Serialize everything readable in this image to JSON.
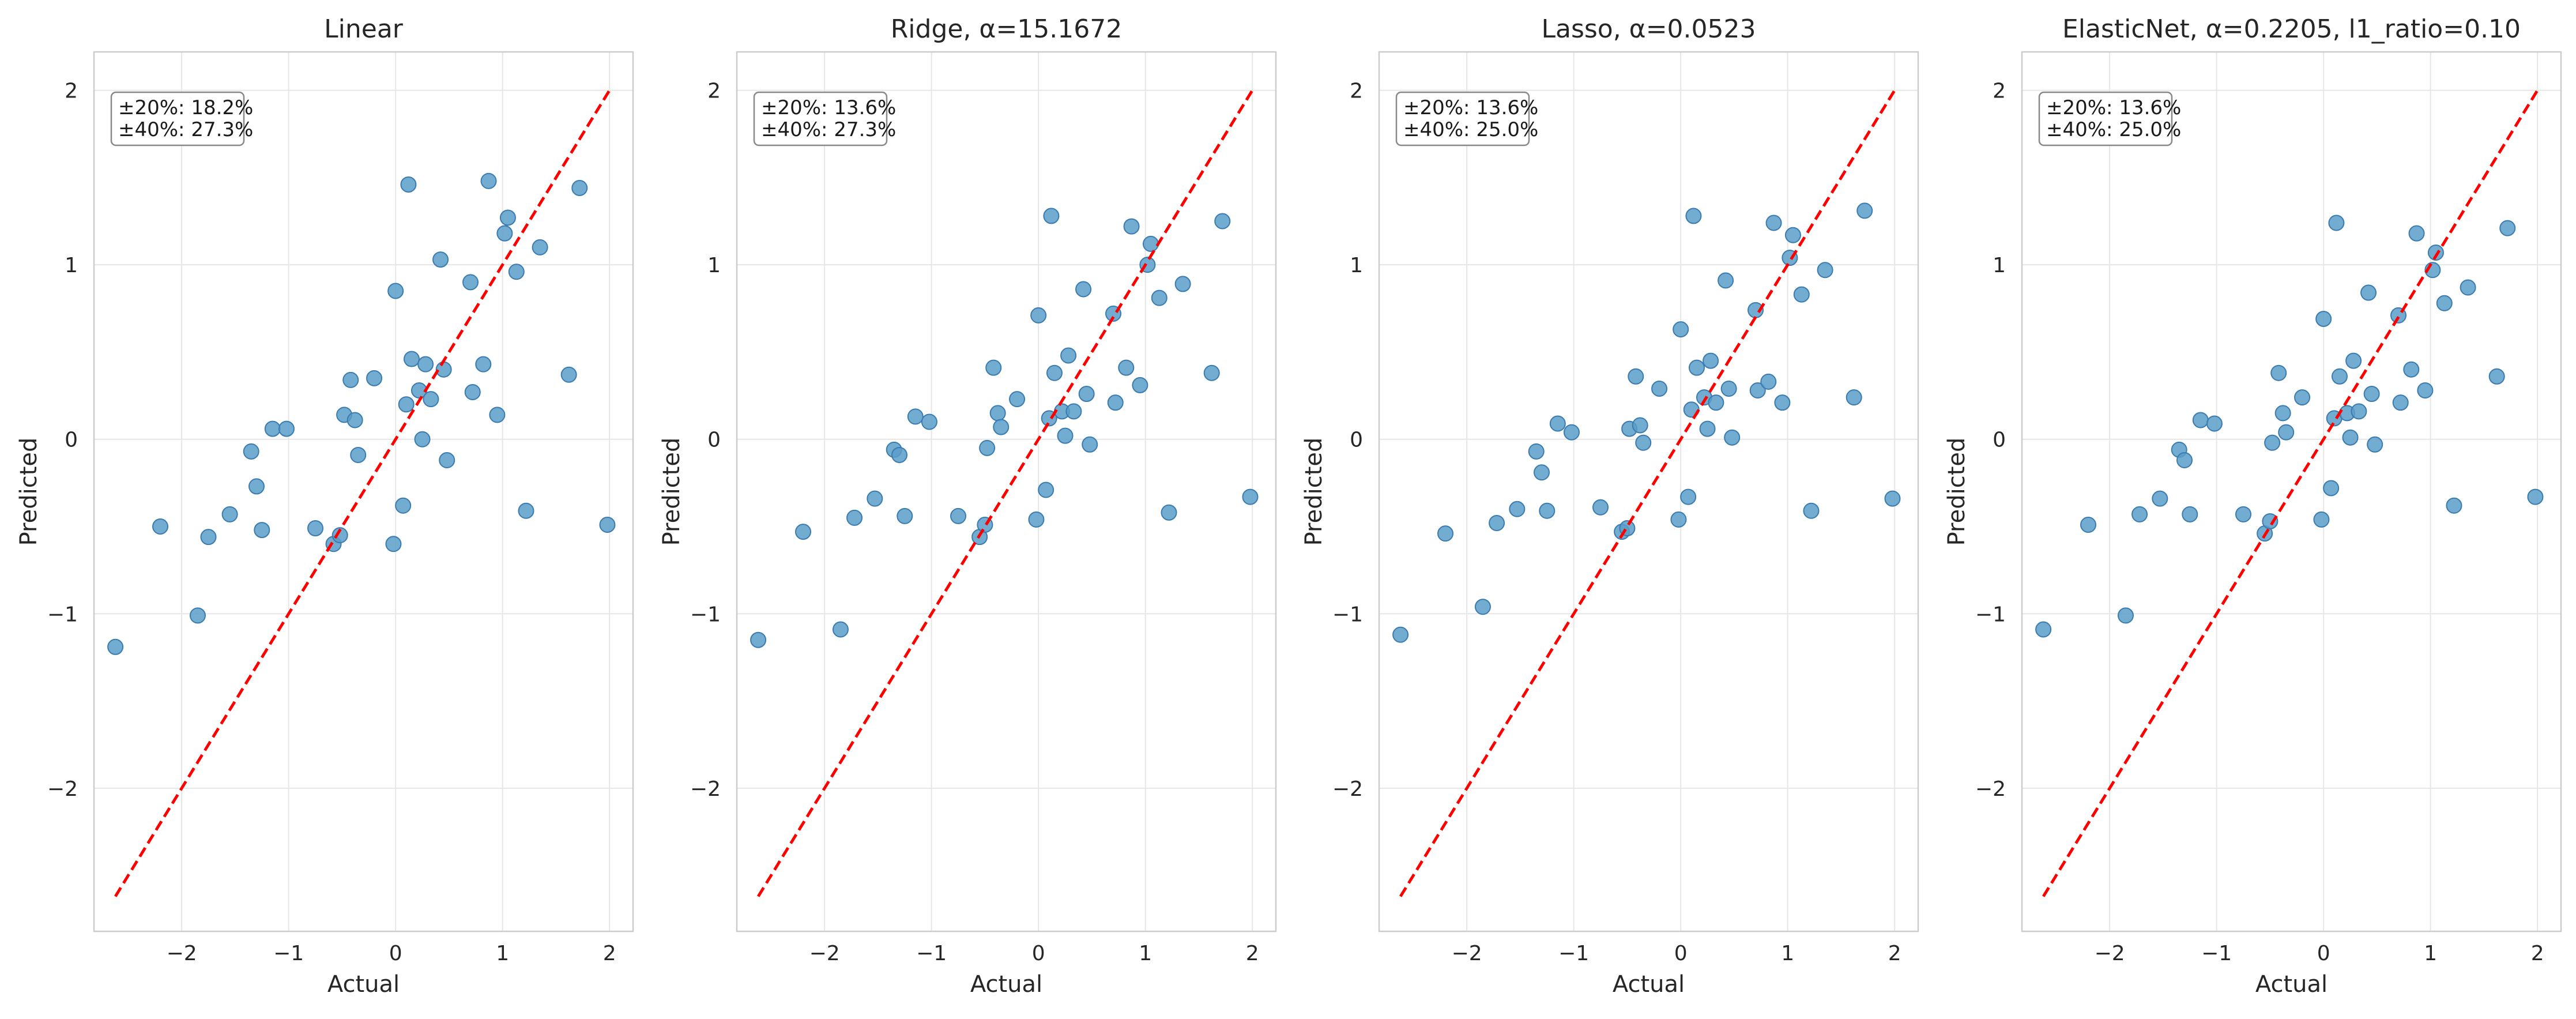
{
  "chart_data": [
    {
      "type": "scatter",
      "title": "Linear",
      "xlabel": "Actual",
      "ylabel": "Predicted",
      "xlim": [
        -2.82,
        2.22
      ],
      "ylim": [
        -2.82,
        2.22
      ],
      "xticks": [
        -2,
        -1,
        0,
        1,
        2
      ],
      "yticks": [
        -2,
        -1,
        0,
        1,
        2
      ],
      "grid": true,
      "annotation": [
        "±20%: 18.2%",
        "±40%: 27.3%"
      ],
      "reference_line": {
        "style": "dashed",
        "color": "#ff0000",
        "from": [
          -2.62,
          -2.62
        ],
        "to": [
          2.0,
          2.0
        ]
      },
      "point_color": "#5b9ec9",
      "points": [
        [
          -2.62,
          -1.19
        ],
        [
          -2.2,
          -0.5
        ],
        [
          -1.85,
          -1.01
        ],
        [
          -1.75,
          -0.56
        ],
        [
          -1.55,
          -0.43
        ],
        [
          -1.35,
          -0.07
        ],
        [
          -1.3,
          -0.27
        ],
        [
          -1.25,
          -0.52
        ],
        [
          -1.15,
          0.06
        ],
        [
          -1.02,
          0.06
        ],
        [
          -0.75,
          -0.51
        ],
        [
          -0.58,
          -0.6
        ],
        [
          -0.52,
          -0.55
        ],
        [
          -0.48,
          0.14
        ],
        [
          -0.42,
          0.34
        ],
        [
          -0.38,
          0.11
        ],
        [
          -0.35,
          -0.09
        ],
        [
          -0.2,
          0.35
        ],
        [
          -0.02,
          -0.6
        ],
        [
          0.0,
          0.85
        ],
        [
          0.07,
          -0.38
        ],
        [
          0.1,
          0.2
        ],
        [
          0.12,
          1.46
        ],
        [
          0.15,
          0.46
        ],
        [
          0.22,
          0.28
        ],
        [
          0.25,
          0.0
        ],
        [
          0.28,
          0.43
        ],
        [
          0.33,
          0.23
        ],
        [
          0.42,
          1.03
        ],
        [
          0.45,
          0.4
        ],
        [
          0.48,
          -0.12
        ],
        [
          0.7,
          0.9
        ],
        [
          0.72,
          0.27
        ],
        [
          0.82,
          0.43
        ],
        [
          0.87,
          1.48
        ],
        [
          0.95,
          0.14
        ],
        [
          1.02,
          1.18
        ],
        [
          1.05,
          1.27
        ],
        [
          1.13,
          0.96
        ],
        [
          1.22,
          -0.41
        ],
        [
          1.35,
          1.1
        ],
        [
          1.62,
          0.37
        ],
        [
          1.72,
          1.44
        ],
        [
          1.98,
          -0.49
        ]
      ]
    },
    {
      "type": "scatter",
      "title": "Ridge, α=15.1672",
      "xlabel": "Actual",
      "ylabel": "Predicted",
      "xlim": [
        -2.82,
        2.22
      ],
      "ylim": [
        -2.82,
        2.22
      ],
      "xticks": [
        -2,
        -1,
        0,
        1,
        2
      ],
      "yticks": [
        -2,
        -1,
        0,
        1,
        2
      ],
      "grid": true,
      "annotation": [
        "±20%: 13.6%",
        "±40%: 27.3%"
      ],
      "reference_line": {
        "style": "dashed",
        "color": "#ff0000",
        "from": [
          -2.62,
          -2.62
        ],
        "to": [
          2.0,
          2.0
        ]
      },
      "point_color": "#5b9ec9",
      "points": [
        [
          -2.62,
          -1.15
        ],
        [
          -2.2,
          -0.53
        ],
        [
          -1.85,
          -1.09
        ],
        [
          -1.72,
          -0.45
        ],
        [
          -1.53,
          -0.34
        ],
        [
          -1.35,
          -0.06
        ],
        [
          -1.3,
          -0.09
        ],
        [
          -1.25,
          -0.44
        ],
        [
          -1.15,
          0.13
        ],
        [
          -1.02,
          0.1
        ],
        [
          -0.75,
          -0.44
        ],
        [
          -0.55,
          -0.56
        ],
        [
          -0.5,
          -0.49
        ],
        [
          -0.48,
          -0.05
        ],
        [
          -0.42,
          0.41
        ],
        [
          -0.38,
          0.15
        ],
        [
          -0.35,
          0.07
        ],
        [
          -0.2,
          0.23
        ],
        [
          -0.02,
          -0.46
        ],
        [
          0.0,
          0.71
        ],
        [
          0.07,
          -0.29
        ],
        [
          0.1,
          0.12
        ],
        [
          0.12,
          1.28
        ],
        [
          0.15,
          0.38
        ],
        [
          0.22,
          0.16
        ],
        [
          0.25,
          0.02
        ],
        [
          0.28,
          0.48
        ],
        [
          0.33,
          0.16
        ],
        [
          0.42,
          0.86
        ],
        [
          0.45,
          0.26
        ],
        [
          0.48,
          -0.03
        ],
        [
          0.7,
          0.72
        ],
        [
          0.72,
          0.21
        ],
        [
          0.82,
          0.41
        ],
        [
          0.87,
          1.22
        ],
        [
          0.95,
          0.31
        ],
        [
          1.02,
          1.0
        ],
        [
          1.05,
          1.12
        ],
        [
          1.13,
          0.81
        ],
        [
          1.22,
          -0.42
        ],
        [
          1.35,
          0.89
        ],
        [
          1.62,
          0.38
        ],
        [
          1.72,
          1.25
        ],
        [
          1.98,
          -0.33
        ]
      ]
    },
    {
      "type": "scatter",
      "title": "Lasso, α=0.0523",
      "xlabel": "Actual",
      "ylabel": "Predicted",
      "xlim": [
        -2.82,
        2.22
      ],
      "ylim": [
        -2.82,
        2.22
      ],
      "xticks": [
        -2,
        -1,
        0,
        1,
        2
      ],
      "yticks": [
        -2,
        -1,
        0,
        1,
        2
      ],
      "grid": true,
      "annotation": [
        "±20%: 13.6%",
        "±40%: 25.0%"
      ],
      "reference_line": {
        "style": "dashed",
        "color": "#ff0000",
        "from": [
          -2.62,
          -2.62
        ],
        "to": [
          2.0,
          2.0
        ]
      },
      "point_color": "#5b9ec9",
      "points": [
        [
          -2.62,
          -1.12
        ],
        [
          -2.2,
          -0.54
        ],
        [
          -1.85,
          -0.96
        ],
        [
          -1.72,
          -0.48
        ],
        [
          -1.53,
          -0.4
        ],
        [
          -1.35,
          -0.07
        ],
        [
          -1.3,
          -0.19
        ],
        [
          -1.25,
          -0.41
        ],
        [
          -1.15,
          0.09
        ],
        [
          -1.02,
          0.04
        ],
        [
          -0.75,
          -0.39
        ],
        [
          -0.55,
          -0.53
        ],
        [
          -0.5,
          -0.51
        ],
        [
          -0.48,
          0.06
        ],
        [
          -0.42,
          0.36
        ],
        [
          -0.38,
          0.08
        ],
        [
          -0.35,
          -0.02
        ],
        [
          -0.2,
          0.29
        ],
        [
          -0.02,
          -0.46
        ],
        [
          0.0,
          0.63
        ],
        [
          0.07,
          -0.33
        ],
        [
          0.1,
          0.17
        ],
        [
          0.12,
          1.28
        ],
        [
          0.15,
          0.41
        ],
        [
          0.22,
          0.24
        ],
        [
          0.25,
          0.06
        ],
        [
          0.28,
          0.45
        ],
        [
          0.33,
          0.21
        ],
        [
          0.42,
          0.91
        ],
        [
          0.45,
          0.29
        ],
        [
          0.48,
          0.01
        ],
        [
          0.7,
          0.74
        ],
        [
          0.72,
          0.28
        ],
        [
          0.82,
          0.33
        ],
        [
          0.87,
          1.24
        ],
        [
          0.95,
          0.21
        ],
        [
          1.02,
          1.04
        ],
        [
          1.05,
          1.17
        ],
        [
          1.13,
          0.83
        ],
        [
          1.22,
          -0.41
        ],
        [
          1.35,
          0.97
        ],
        [
          1.62,
          0.24
        ],
        [
          1.72,
          1.31
        ],
        [
          1.98,
          -0.34
        ]
      ]
    },
    {
      "type": "scatter",
      "title": "ElasticNet, α=0.2205, l1_ratio=0.10",
      "xlabel": "Actual",
      "ylabel": "Predicted",
      "xlim": [
        -2.82,
        2.22
      ],
      "ylim": [
        -2.82,
        2.22
      ],
      "xticks": [
        -2,
        -1,
        0,
        1,
        2
      ],
      "yticks": [
        -2,
        -1,
        0,
        1,
        2
      ],
      "grid": true,
      "annotation": [
        "±20%: 13.6%",
        "±40%: 25.0%"
      ],
      "reference_line": {
        "style": "dashed",
        "color": "#ff0000",
        "from": [
          -2.62,
          -2.62
        ],
        "to": [
          2.0,
          2.0
        ]
      },
      "point_color": "#5b9ec9",
      "points": [
        [
          -2.62,
          -1.09
        ],
        [
          -2.2,
          -0.49
        ],
        [
          -1.85,
          -1.01
        ],
        [
          -1.72,
          -0.43
        ],
        [
          -1.53,
          -0.34
        ],
        [
          -1.35,
          -0.06
        ],
        [
          -1.3,
          -0.12
        ],
        [
          -1.25,
          -0.43
        ],
        [
          -1.15,
          0.11
        ],
        [
          -1.02,
          0.09
        ],
        [
          -0.75,
          -0.43
        ],
        [
          -0.55,
          -0.54
        ],
        [
          -0.5,
          -0.47
        ],
        [
          -0.48,
          -0.02
        ],
        [
          -0.42,
          0.38
        ],
        [
          -0.38,
          0.15
        ],
        [
          -0.35,
          0.04
        ],
        [
          -0.2,
          0.24
        ],
        [
          -0.02,
          -0.46
        ],
        [
          0.0,
          0.69
        ],
        [
          0.07,
          -0.28
        ],
        [
          0.1,
          0.12
        ],
        [
          0.12,
          1.24
        ],
        [
          0.15,
          0.36
        ],
        [
          0.22,
          0.15
        ],
        [
          0.25,
          0.01
        ],
        [
          0.28,
          0.45
        ],
        [
          0.33,
          0.16
        ],
        [
          0.42,
          0.84
        ],
        [
          0.45,
          0.26
        ],
        [
          0.48,
          -0.03
        ],
        [
          0.7,
          0.71
        ],
        [
          0.72,
          0.21
        ],
        [
          0.82,
          0.4
        ],
        [
          0.87,
          1.18
        ],
        [
          0.95,
          0.28
        ],
        [
          1.02,
          0.97
        ],
        [
          1.05,
          1.07
        ],
        [
          1.13,
          0.78
        ],
        [
          1.22,
          -0.38
        ],
        [
          1.35,
          0.87
        ],
        [
          1.62,
          0.36
        ],
        [
          1.72,
          1.21
        ],
        [
          1.98,
          -0.33
        ]
      ]
    }
  ]
}
